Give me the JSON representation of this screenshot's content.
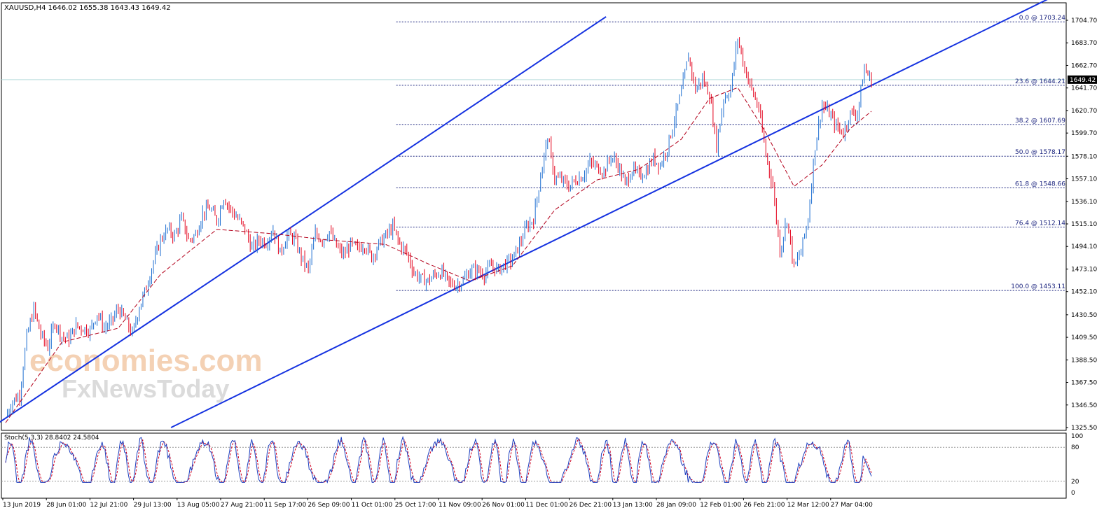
{
  "header": {
    "symbol": "XAUUSD,H4",
    "ohlc": "1646.02 1655.38 1643.43 1649.42"
  },
  "current_price_tag": "1649.42",
  "watermark": {
    "line1": "economies.com",
    "line2": "FxNewsToday"
  },
  "colors": {
    "up_candle": "#1f6fd1",
    "down_candle": "#e3001b",
    "channel_line": "#1532e0",
    "fib_line": "#1a237e",
    "ma_line": "#b3001b",
    "stoch_main": "#1d3fbf",
    "stoch_signal": "#d00020",
    "grid_dotted": "#9a9a9a",
    "watermark": "#f3c9a8",
    "watermark2": "#d8d8d8"
  },
  "chart_data": [
    {
      "type": "candlestick",
      "title": "XAUUSD,H4",
      "y_ticks": [
        "1704.70",
        "1683.70",
        "1662.70",
        "1641.70",
        "1620.70",
        "1599.70",
        "1578.10",
        "1557.10",
        "1536.10",
        "1515.10",
        "1494.10",
        "1473.10",
        "1452.10",
        "1430.50",
        "1409.50",
        "1388.50",
        "1367.50",
        "1346.50",
        "1325.50"
      ],
      "ylim": [
        1325.5,
        1704.7
      ],
      "x_ticks": [
        "13 Jun 2019",
        "28 Jun 01:00",
        "12 Jul 21:00",
        "29 Jul 13:00",
        "13 Aug 05:00",
        "27 Aug 21:00",
        "11 Sep 17:00",
        "26 Sep 09:00",
        "11 Oct 01:00",
        "25 Oct 17:00",
        "11 Nov 09:00",
        "26 Nov 01:00",
        "11 Dec 01:00",
        "26 Dec 21:00",
        "13 Jan 13:00",
        "28 Jan 09:00",
        "12 Feb 01:00",
        "26 Feb 21:00",
        "12 Mar 12:00",
        "27 Mar 04:00"
      ],
      "current_price": 1649.42,
      "price_path": [
        [
          0,
          1336
        ],
        [
          1,
          1350
        ],
        [
          2,
          1356
        ],
        [
          3,
          1410
        ],
        [
          4,
          1436
        ],
        [
          5,
          1412
        ],
        [
          6,
          1400
        ],
        [
          7,
          1424
        ],
        [
          8,
          1410
        ],
        [
          9,
          1408
        ],
        [
          10,
          1420
        ],
        [
          11,
          1418
        ],
        [
          12,
          1416
        ],
        [
          13,
          1432
        ],
        [
          14,
          1418
        ],
        [
          15,
          1424
        ],
        [
          16,
          1436
        ],
        [
          17,
          1426
        ],
        [
          18,
          1412
        ],
        [
          19,
          1438
        ],
        [
          20,
          1456
        ],
        [
          21,
          1480
        ],
        [
          22,
          1500
        ],
        [
          23,
          1510
        ],
        [
          24,
          1504
        ],
        [
          25,
          1520
        ],
        [
          26,
          1500
        ],
        [
          27,
          1505
        ],
        [
          28,
          1525
        ],
        [
          29,
          1530
        ],
        [
          30,
          1518
        ],
        [
          31,
          1540
        ],
        [
          32,
          1528
        ],
        [
          33,
          1520
        ],
        [
          34,
          1510
        ],
        [
          35,
          1492
        ],
        [
          36,
          1500
        ],
        [
          37,
          1498
        ],
        [
          38,
          1510
        ],
        [
          39,
          1488
        ],
        [
          40,
          1504
        ],
        [
          41,
          1502
        ],
        [
          42,
          1484
        ],
        [
          43,
          1472
        ],
        [
          44,
          1506
        ],
        [
          45,
          1500
        ],
        [
          46,
          1508
        ],
        [
          47,
          1494
        ],
        [
          48,
          1486
        ],
        [
          49,
          1496
        ],
        [
          50,
          1492
        ],
        [
          51,
          1496
        ],
        [
          52,
          1484
        ],
        [
          53,
          1496
        ],
        [
          54,
          1504
        ],
        [
          55,
          1512
        ],
        [
          56,
          1496
        ],
        [
          57,
          1488
        ],
        [
          58,
          1470
        ],
        [
          59,
          1464
        ],
        [
          60,
          1462
        ],
        [
          61,
          1468
        ],
        [
          62,
          1470
        ],
        [
          63,
          1460
        ],
        [
          64,
          1458
        ],
        [
          65,
          1462
        ],
        [
          66,
          1472
        ],
        [
          67,
          1472
        ],
        [
          68,
          1468
        ],
        [
          69,
          1476
        ],
        [
          70,
          1472
        ],
        [
          71,
          1478
        ],
        [
          72,
          1482
        ],
        [
          73,
          1496
        ],
        [
          74,
          1512
        ],
        [
          75,
          1520
        ],
        [
          76,
          1560
        ],
        [
          77,
          1596
        ],
        [
          78,
          1558
        ],
        [
          79,
          1556
        ],
        [
          80,
          1550
        ],
        [
          81,
          1556
        ],
        [
          82,
          1560
        ],
        [
          83,
          1572
        ],
        [
          84,
          1568
        ],
        [
          85,
          1564
        ],
        [
          86,
          1578
        ],
        [
          87,
          1570
        ],
        [
          88,
          1552
        ],
        [
          89,
          1566
        ],
        [
          90,
          1560
        ],
        [
          91,
          1564
        ],
        [
          92,
          1576
        ],
        [
          93,
          1570
        ],
        [
          94,
          1586
        ],
        [
          95,
          1612
        ],
        [
          96,
          1638
        ],
        [
          97,
          1672
        ],
        [
          98,
          1640
        ],
        [
          99,
          1650
        ],
        [
          100,
          1636
        ],
        [
          101,
          1588
        ],
        [
          102,
          1632
        ],
        [
          103,
          1640
        ],
        [
          104,
          1688
        ],
        [
          105,
          1660
        ],
        [
          106,
          1640
        ],
        [
          107,
          1622
        ],
        [
          108,
          1580
        ],
        [
          109,
          1550
        ],
        [
          110,
          1490
        ],
        [
          111,
          1520
        ],
        [
          112,
          1474
        ],
        [
          113,
          1490
        ],
        [
          114,
          1520
        ],
        [
          115,
          1588
        ],
        [
          116,
          1626
        ],
        [
          117,
          1618
        ],
        [
          118,
          1606
        ],
        [
          119,
          1600
        ],
        [
          120,
          1618
        ],
        [
          121,
          1618
        ],
        [
          122,
          1660
        ],
        [
          123,
          1648
        ]
      ],
      "moving_average": [
        [
          0,
          1330
        ],
        [
          8,
          1405
        ],
        [
          16,
          1418
        ],
        [
          22,
          1468
        ],
        [
          30,
          1510
        ],
        [
          38,
          1506
        ],
        [
          46,
          1500
        ],
        [
          54,
          1496
        ],
        [
          60,
          1478
        ],
        [
          66,
          1462
        ],
        [
          72,
          1476
        ],
        [
          78,
          1528
        ],
        [
          84,
          1556
        ],
        [
          90,
          1566
        ],
        [
          96,
          1594
        ],
        [
          100,
          1632
        ],
        [
          104,
          1642
        ],
        [
          108,
          1600
        ],
        [
          112,
          1550
        ],
        [
          116,
          1570
        ],
        [
          120,
          1604
        ],
        [
          123,
          1620
        ]
      ],
      "channel_upper": [
        [
          1325.5,
          -2
        ],
        [
          1708.0,
          85.3
        ]
      ],
      "channel_lower": [
        [
          1325.5,
          23.5
        ],
        [
          1642.5,
          122.5
        ]
      ],
      "fibonacci": [
        {
          "label": "0.0 @ 1703.24",
          "price": 1703.24
        },
        {
          "label": "23.6 @ 1644.21",
          "price": 1644.21
        },
        {
          "label": "38.2 @ 1607.69",
          "price": 1607.69
        },
        {
          "label": "50.0 @ 1578.17",
          "price": 1578.17
        },
        {
          "label": "61.8 @ 1548.66",
          "price": 1548.66
        },
        {
          "label": "76.4 @ 1512.14",
          "price": 1512.14
        },
        {
          "label": "100.0 @ 1453.11",
          "price": 1453.11
        }
      ],
      "fib_start_index": 55.5
    },
    {
      "type": "line",
      "title": "Stoch(5,3,3) 28.8402 24.5804",
      "label": "Stoch(5,3,3)",
      "main_value": "28.8402",
      "signal_value": "24.5804",
      "ylim": [
        0,
        100
      ],
      "y_ticks": [
        "100",
        "80",
        "20",
        "0"
      ],
      "levels": [
        80,
        20
      ],
      "oscillation": {
        "min": 18,
        "max": 98,
        "cycles_per_bar": 0.33,
        "last_value": 28.84
      }
    }
  ]
}
